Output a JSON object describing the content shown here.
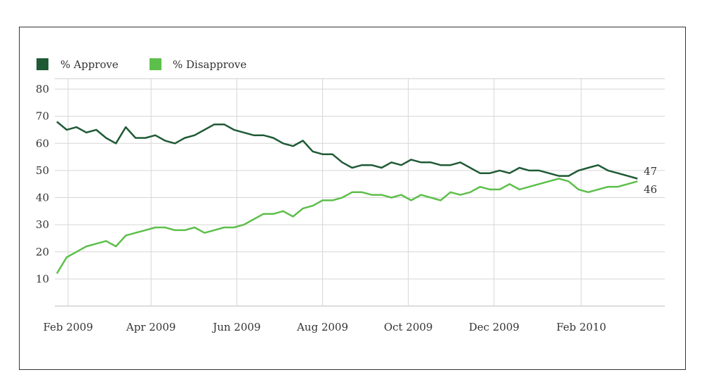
{
  "chart_data": {
    "type": "line",
    "title": "",
    "xlabel": "",
    "ylabel": "",
    "ylim": [
      0,
      80
    ],
    "yticks": [
      10,
      20,
      30,
      40,
      50,
      60,
      70,
      80
    ],
    "xticks": [
      {
        "date": "2009-02-01",
        "label": "Feb 2009"
      },
      {
        "date": "2009-04-01",
        "label": "Apr 2009"
      },
      {
        "date": "2009-06-01",
        "label": "Jun 2009"
      },
      {
        "date": "2009-08-01",
        "label": "Aug 2009"
      },
      {
        "date": "2009-10-01",
        "label": "Oct 2009"
      },
      {
        "date": "2009-12-01",
        "label": "Dec 2009"
      },
      {
        "date": "2010-02-01",
        "label": "Feb 2010"
      }
    ],
    "grid": true,
    "legend_placement": "top-left",
    "x": [
      "2009-01-24",
      "2009-01-31",
      "2009-02-07",
      "2009-02-14",
      "2009-02-21",
      "2009-02-28",
      "2009-03-07",
      "2009-03-14",
      "2009-03-21",
      "2009-03-28",
      "2009-04-04",
      "2009-04-11",
      "2009-04-18",
      "2009-04-25",
      "2009-05-02",
      "2009-05-09",
      "2009-05-16",
      "2009-05-23",
      "2009-05-30",
      "2009-06-06",
      "2009-06-13",
      "2009-06-20",
      "2009-06-27",
      "2009-07-04",
      "2009-07-11",
      "2009-07-18",
      "2009-07-25",
      "2009-08-01",
      "2009-08-08",
      "2009-08-15",
      "2009-08-22",
      "2009-08-29",
      "2009-09-05",
      "2009-09-12",
      "2009-09-19",
      "2009-09-26",
      "2009-10-03",
      "2009-10-10",
      "2009-10-17",
      "2009-10-24",
      "2009-10-31",
      "2009-11-07",
      "2009-11-14",
      "2009-11-21",
      "2009-11-28",
      "2009-12-05",
      "2009-12-12",
      "2009-12-19",
      "2009-12-26",
      "2010-01-02",
      "2010-01-09",
      "2010-01-16",
      "2010-01-23",
      "2010-01-30",
      "2010-02-06",
      "2010-02-13",
      "2010-02-20",
      "2010-02-27",
      "2010-03-06",
      "2010-03-13"
    ],
    "series": [
      {
        "name": "% Approve",
        "color": "#1f5a35",
        "end_label": "47",
        "values": [
          68,
          65,
          66,
          64,
          65,
          62,
          60,
          66,
          62,
          62,
          63,
          61,
          60,
          62,
          63,
          65,
          67,
          67,
          65,
          64,
          63,
          63,
          62,
          60,
          59,
          61,
          57,
          56,
          56,
          53,
          51,
          52,
          52,
          51,
          53,
          52,
          54,
          53,
          53,
          52,
          52,
          53,
          51,
          49,
          49,
          50,
          49,
          51,
          50,
          50,
          49,
          48,
          48,
          50,
          51,
          52,
          50,
          49,
          48,
          47
        ]
      },
      {
        "name": "% Disapprove",
        "color": "#5dbf4b",
        "end_label": "46",
        "values": [
          12,
          18,
          20,
          22,
          23,
          24,
          22,
          26,
          27,
          28,
          29,
          29,
          28,
          28,
          29,
          27,
          28,
          29,
          29,
          30,
          32,
          34,
          34,
          35,
          33,
          36,
          37,
          39,
          39,
          40,
          42,
          42,
          41,
          41,
          40,
          41,
          39,
          41,
          40,
          39,
          42,
          41,
          42,
          44,
          43,
          43,
          45,
          43,
          44,
          45,
          46,
          47,
          46,
          43,
          42,
          43,
          44,
          44,
          45,
          46
        ]
      }
    ]
  }
}
